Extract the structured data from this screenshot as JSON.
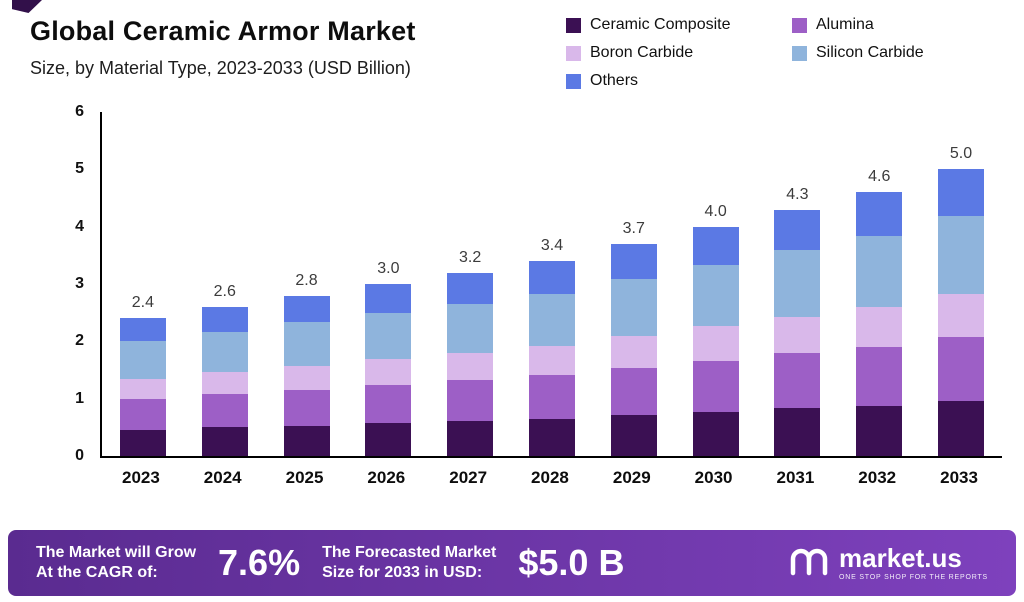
{
  "title": "Global Ceramic Armor Market",
  "subtitle": "Size, by Material Type, 2023-2033 (USD Billion)",
  "chart_data": {
    "type": "bar",
    "stacked": true,
    "title": "Global Ceramic Armor Market Size, by Material Type, 2023-2033 (USD Billion)",
    "xlabel": "",
    "ylabel": "",
    "ylim": [
      0,
      6
    ],
    "yticks": [
      0,
      1,
      2,
      3,
      4,
      5,
      6
    ],
    "grid": false,
    "legend_position": "top-right",
    "categories": [
      "2023",
      "2024",
      "2025",
      "2026",
      "2027",
      "2028",
      "2029",
      "2030",
      "2031",
      "2032",
      "2033"
    ],
    "totals": [
      "2.4",
      "2.6",
      "2.8",
      "3.0",
      "3.2",
      "3.4",
      "3.7",
      "4.0",
      "4.3",
      "4.6",
      "5.0"
    ],
    "series": [
      {
        "name": "Ceramic Composite",
        "color": "#3b1053",
        "values": [
          0.45,
          0.5,
          0.53,
          0.57,
          0.61,
          0.65,
          0.71,
          0.77,
          0.83,
          0.88,
          0.96
        ]
      },
      {
        "name": "Alumina",
        "color": "#9d5fc6",
        "values": [
          0.55,
          0.58,
          0.62,
          0.67,
          0.71,
          0.76,
          0.83,
          0.89,
          0.96,
          1.03,
          1.12
        ]
      },
      {
        "name": "Boron Carbide",
        "color": "#d9b8ea",
        "values": [
          0.35,
          0.38,
          0.42,
          0.45,
          0.48,
          0.51,
          0.55,
          0.6,
          0.64,
          0.69,
          0.75
        ]
      },
      {
        "name": "Silicon Carbide",
        "color": "#8fb4dc",
        "values": [
          0.65,
          0.7,
          0.76,
          0.81,
          0.86,
          0.91,
          1.0,
          1.08,
          1.16,
          1.24,
          1.35
        ]
      },
      {
        "name": "Others",
        "color": "#5b79e4",
        "values": [
          0.4,
          0.44,
          0.47,
          0.5,
          0.54,
          0.57,
          0.61,
          0.66,
          0.71,
          0.76,
          0.82
        ]
      }
    ]
  },
  "banner": {
    "grow_line1": "The Market will Grow",
    "grow_line2": "At the CAGR of:",
    "cagr_value": "7.6%",
    "forecast_line1": "The Forecasted Market",
    "forecast_line2": "Size for 2033 in USD:",
    "forecast_value": "$5.0 B",
    "brand_name": "market.us",
    "brand_tagline": "ONE STOP SHOP FOR THE REPORTS"
  }
}
